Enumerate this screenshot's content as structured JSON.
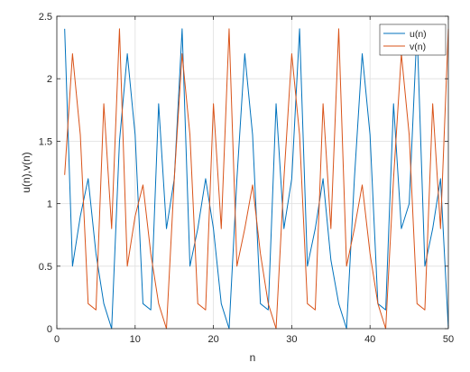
{
  "chart_data": {
    "type": "line",
    "title": "",
    "xlabel": "n",
    "ylabel": "u(n),v(n)",
    "xlim": [
      0,
      50
    ],
    "ylim": [
      0,
      2.5
    ],
    "xticks": [
      0,
      10,
      20,
      30,
      40,
      50
    ],
    "yticks": [
      0,
      0.5,
      1,
      1.5,
      2,
      2.5
    ],
    "xtick_labels": [
      "0",
      "10",
      "20",
      "30",
      "40",
      "50"
    ],
    "ytick_labels": [
      "0",
      "0.5",
      "1",
      "1.5",
      "2",
      "2.5"
    ],
    "grid": true,
    "legend_position": "top-right",
    "x": [
      1,
      2,
      3,
      4,
      5,
      6,
      7,
      8,
      9,
      10,
      11,
      12,
      13,
      14,
      15,
      16,
      17,
      18,
      19,
      20,
      21,
      22,
      23,
      24,
      25,
      26,
      27,
      28,
      29,
      30,
      31,
      32,
      33,
      34,
      35,
      36,
      37,
      38,
      39,
      40,
      41,
      42,
      43,
      44,
      45,
      46,
      47,
      48,
      49,
      50
    ],
    "series": [
      {
        "name": "u(n)",
        "color": "#0072BD",
        "values": [
          2.4,
          0.5,
          0.9,
          1.2,
          0.6,
          0.2,
          0.0,
          1.5,
          2.2,
          1.55,
          0.2,
          0.15,
          1.8,
          0.8,
          1.2,
          2.4,
          0.5,
          0.8,
          1.2,
          0.8,
          0.2,
          0.0,
          1.2,
          2.2,
          1.55,
          0.2,
          0.15,
          1.8,
          0.8,
          1.2,
          2.4,
          0.5,
          0.8,
          1.2,
          0.55,
          0.2,
          0.0,
          1.2,
          2.2,
          1.55,
          0.2,
          0.15,
          1.8,
          0.8,
          1.0,
          2.4,
          0.5,
          0.8,
          1.2,
          0.0
        ]
      },
      {
        "name": "v(n)",
        "color": "#D95319",
        "values": [
          1.23,
          2.2,
          1.55,
          0.2,
          0.15,
          1.8,
          0.8,
          2.4,
          0.5,
          0.9,
          1.15,
          0.6,
          0.2,
          0.0,
          1.2,
          2.2,
          1.55,
          0.2,
          0.15,
          1.8,
          0.8,
          2.4,
          0.5,
          0.8,
          1.15,
          0.6,
          0.2,
          0.0,
          1.2,
          2.2,
          1.55,
          0.2,
          0.15,
          1.8,
          0.8,
          2.4,
          0.5,
          0.8,
          1.15,
          0.6,
          0.2,
          0.0,
          1.2,
          2.2,
          1.55,
          0.2,
          0.15,
          1.8,
          0.8,
          2.4
        ]
      }
    ]
  }
}
